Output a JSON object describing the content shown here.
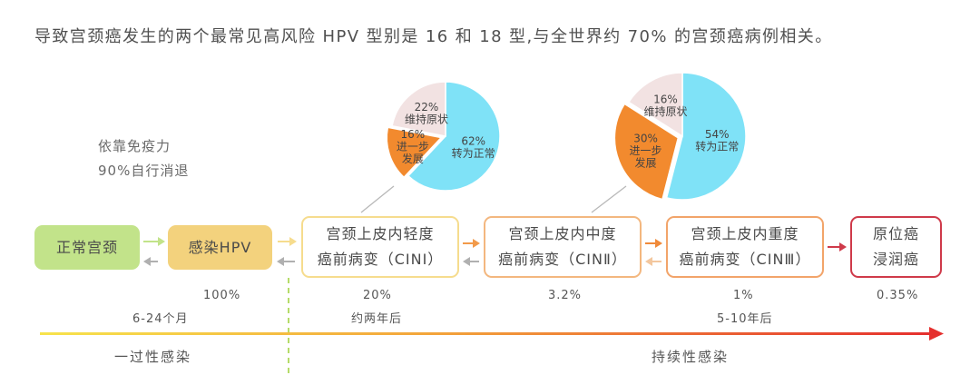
{
  "headline": "导致宫颈癌发生的两个最常见高风险 HPV 型别是 16 和 18 型,与全世界约 70% 的宫颈癌病例相关。",
  "immunity_note": [
    "依靠免疫力",
    "90%自行消退"
  ],
  "stages": {
    "normal": "正常宫颈",
    "hpv": "感染HPV",
    "cin1": [
      "宫颈上皮内轻度",
      "癌前病变（CINⅠ）"
    ],
    "cin2": [
      "宫颈上皮内中度",
      "癌前病变（CINⅡ）"
    ],
    "cin3": [
      "宫颈上皮内重度",
      "癌前病变（CINⅢ）"
    ],
    "carcinoma": [
      "原位癌",
      "浸润癌"
    ]
  },
  "progression_rates": {
    "hpv": "100%",
    "cin1": "20%",
    "cin2": "3.2%",
    "cin3": "1%",
    "carcinoma": "0.35%"
  },
  "timeline": {
    "normal_to_hpv": "6-24个月",
    "to_cin1": "约两年后",
    "to_cin3": "5-10年后"
  },
  "phases": {
    "transient": "一过性感染",
    "persistent": "持续性感染"
  },
  "colors": {
    "normal": "#c2e38a",
    "hpv": "#f3d27d",
    "pie_normal": "#7fe2f7",
    "pie_progress": "#f28a2e",
    "pie_maintain": "#f2e2e2",
    "carcinoma_border": "#cf3a4a"
  },
  "chart_data": [
    {
      "type": "pie",
      "categories": [
        "转为正常",
        "进一步发展",
        "维持原状"
      ],
      "values": [
        62,
        16,
        22
      ],
      "labels": [
        {
          "pct": "62%",
          "text": [
            "转为正常"
          ]
        },
        {
          "pct": "16%",
          "text": [
            "进一步",
            "发展"
          ]
        },
        {
          "pct": "22%",
          "text": [
            "维持原状"
          ]
        }
      ]
    },
    {
      "type": "pie",
      "categories": [
        "转为正常",
        "进一步发展",
        "维持原状"
      ],
      "values": [
        54,
        30,
        16
      ],
      "labels": [
        {
          "pct": "54%",
          "text": [
            "转为正常"
          ]
        },
        {
          "pct": "30%",
          "text": [
            "进一步",
            "发展"
          ]
        },
        {
          "pct": "16%",
          "text": [
            "维持原状"
          ]
        }
      ]
    }
  ]
}
